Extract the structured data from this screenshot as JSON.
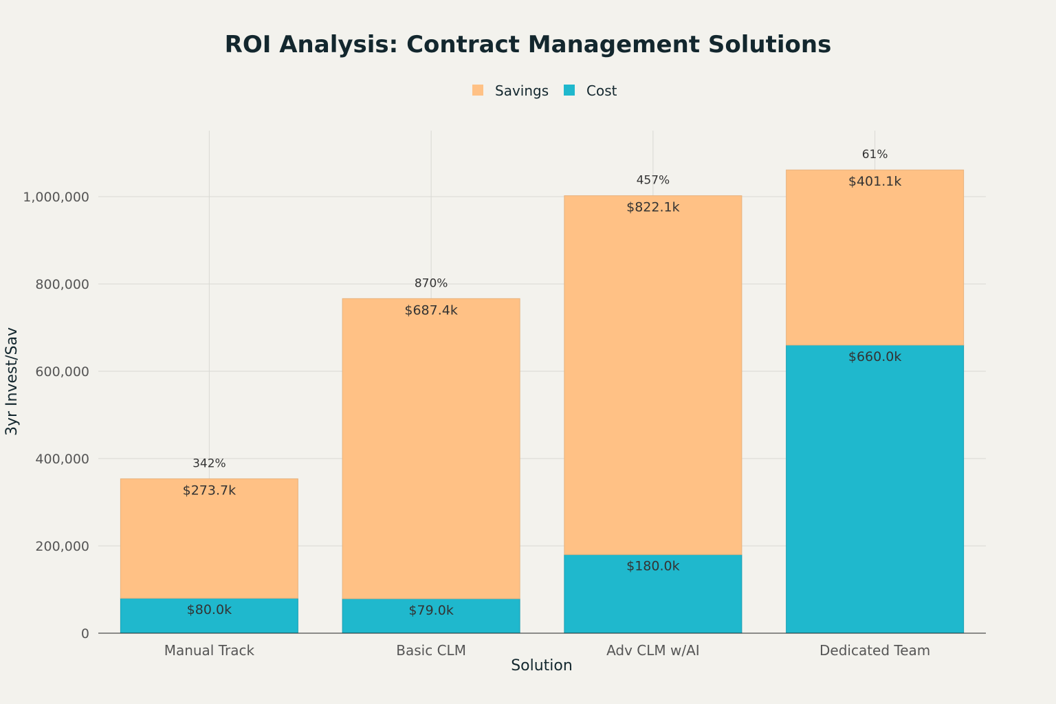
{
  "chart_data": {
    "type": "bar",
    "stacked": true,
    "title": "ROI Analysis: Contract Management Solutions",
    "xlabel": "Solution",
    "ylabel": "3yr Invest/Sav",
    "ylim": [
      0,
      1150000
    ],
    "yticks": [
      0,
      200000,
      400000,
      600000,
      800000,
      1000000
    ],
    "ytick_labels": [
      "0",
      "200,000",
      "400,000",
      "600,000",
      "800,000",
      "1,000,000"
    ],
    "grid": true,
    "legend_position": "top-center",
    "categories": [
      "Manual Track",
      "Basic CLM",
      "Adv CLM w/AI",
      "Dedicated Team"
    ],
    "legend": [
      {
        "name": "Savings",
        "color": "#ffc185"
      },
      {
        "name": "Cost",
        "color": "#1fb8cd"
      }
    ],
    "series": [
      {
        "name": "Cost",
        "color": "#1fb8cd",
        "values": [
          80000,
          79000,
          180000,
          660000
        ],
        "labels": [
          "$80.0k",
          "$79.0k",
          "$180.0k",
          "$660.0k"
        ]
      },
      {
        "name": "Savings",
        "color": "#ffc185",
        "values": [
          273700,
          687400,
          822100,
          401100
        ],
        "labels": [
          "$273.7k",
          "$687.4k",
          "$822.1k",
          "$401.1k"
        ]
      }
    ],
    "annotations": [
      "342%",
      "870%",
      "457%",
      "61%"
    ]
  }
}
